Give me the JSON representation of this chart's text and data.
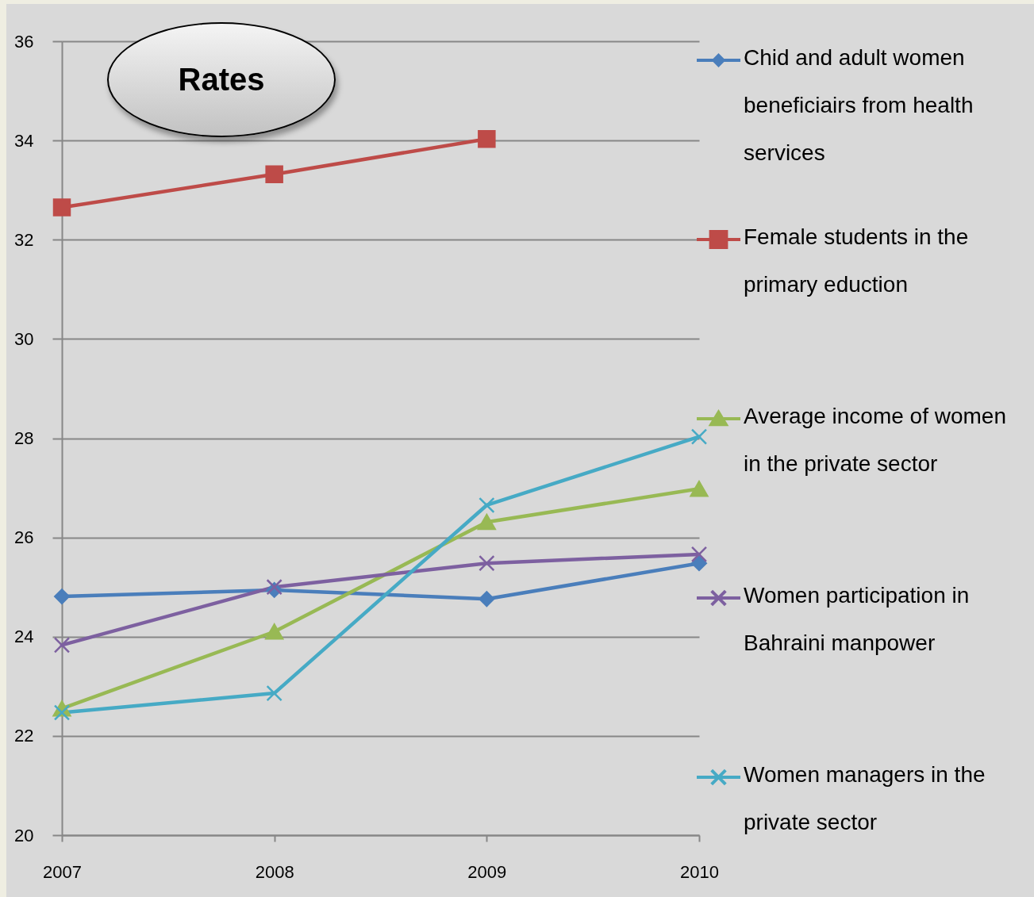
{
  "chart_data": {
    "type": "line",
    "title": "Rates",
    "categories": [
      "2007",
      "2008",
      "2009",
      "2010"
    ],
    "series": [
      {
        "name": "Chid and adult women beneficiairs from health services",
        "color": "#4a7ebb",
        "marker": "diamond",
        "values": [
          24.81,
          24.94,
          24.76,
          25.48
        ]
      },
      {
        "name": "Female students in the primary eduction",
        "color": "#be4b48",
        "marker": "square",
        "values": [
          32.65,
          33.32,
          34.03,
          null
        ]
      },
      {
        "name": "Average income of women in the private sector",
        "color": "#98b954",
        "marker": "triangle",
        "values": [
          22.55,
          24.1,
          26.31,
          26.98
        ]
      },
      {
        "name": "Women participation in Bahraini manpower",
        "color": "#7d60a0",
        "marker": "cross",
        "values": [
          23.83,
          25.0,
          25.48,
          25.66
        ]
      },
      {
        "name": "Women managers in the private sector",
        "color": "#46aac5",
        "marker": "cross",
        "values": [
          22.47,
          22.86,
          26.65,
          28.03
        ]
      }
    ],
    "ylim": [
      20,
      36
    ],
    "yticks": [
      20,
      22,
      24,
      26,
      28,
      30,
      32,
      34,
      36
    ],
    "grid": "y",
    "legend": "right",
    "line_style": "solid"
  }
}
